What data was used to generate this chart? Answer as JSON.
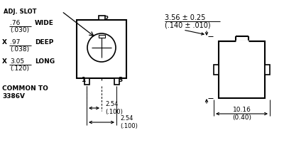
{
  "bg_color": "#ffffff",
  "line_color": "#000000",
  "text_color": "#000000",
  "fig_width": 4.0,
  "fig_height": 2.18,
  "dpi": 100,
  "labels": {
    "adj_slot": "ADJ. SLOT",
    "wide_frac": ".76",
    "wide_paren": "(.030)",
    "wide_label": "WIDE",
    "deep_frac": ".97",
    "deep_paren": "(.038)",
    "deep_label": "DEEP",
    "long_frac": "3.05",
    "long_paren": "(.120)",
    "long_label": "LONG",
    "common_line1": "COMMON TO",
    "common_line2": "3386V",
    "pin1": "1",
    "pin2": "2",
    "pin3": "3",
    "dim1_top": "3.56 ± 0.25",
    "dim1_bot": "(.140 ± .010)",
    "dim2_top": "2.54",
    "dim2_bot": "(.100)",
    "dim3_top": "2.54",
    "dim3_bot": "(.100)",
    "dim4_top": "10.16",
    "dim4_bot": "(0.40)"
  }
}
